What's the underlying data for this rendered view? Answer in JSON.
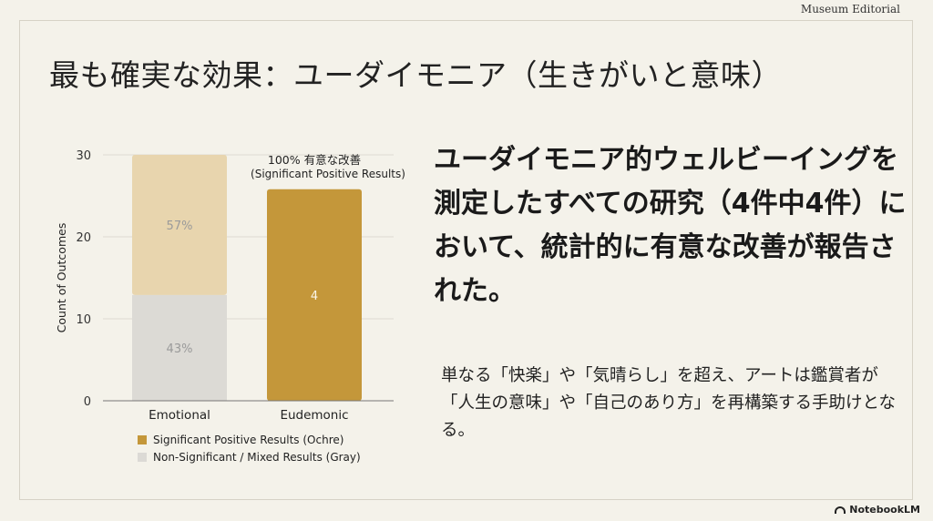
{
  "header": {
    "corner_tag": "Museum Editorial"
  },
  "slide": {
    "title": "最も確実な効果：ユーダイモニア（生きがいと意味）",
    "headline": "ユーダイモニア的ウェルビーイングを測定したすべての研究（4件中4件）において、統計的に有意な改善が報告された。",
    "body": "単なる「快楽」や「気晴らし」を超え、アートは鑑賞者が「人生の意味」や「自己のあり方」を再構築する手助けとなる。"
  },
  "footer": {
    "brand": "NotebookLM"
  },
  "colors": {
    "ochre": "#c4973a",
    "ochre_light": "#e8d5ae",
    "gray": "#dcdad5",
    "background": "#f4f2ea"
  },
  "chart_data": {
    "type": "bar",
    "stacked": true,
    "categories": [
      "Emotional",
      "Eudemonic"
    ],
    "ylabel": "Count of Outcomes",
    "ylim": [
      0,
      30
    ],
    "yticks": [
      0,
      10,
      20,
      30
    ],
    "series": [
      {
        "name": "Non-Significant / Mixed Results (Gray)",
        "color": "#dcdad5",
        "values": [
          12.9,
          0
        ],
        "labels": [
          "43%",
          ""
        ]
      },
      {
        "name": "Significant Positive Results (Ochre)",
        "color": "#c4973a",
        "values": [
          17.1,
          25.8
        ],
        "labels": [
          "57%",
          "4"
        ]
      }
    ],
    "annotation": {
      "category": "Eudemonic",
      "lines": [
        "100% 有意な改善",
        "(Significant Positive Results)"
      ]
    },
    "legend": {
      "position": "bottom-left"
    }
  }
}
